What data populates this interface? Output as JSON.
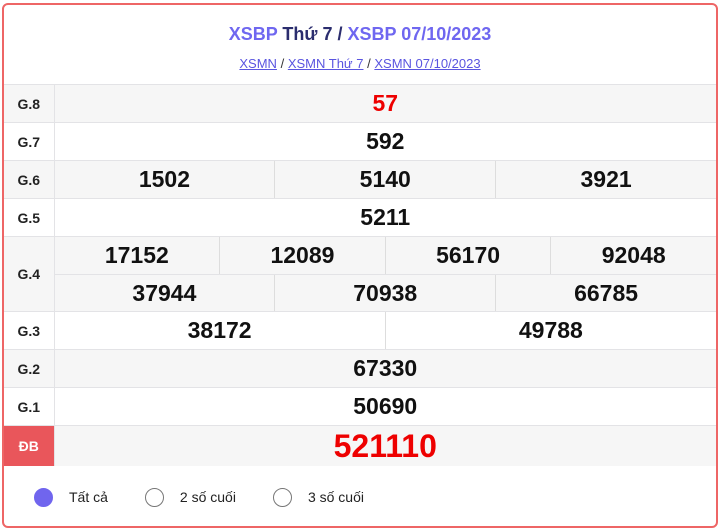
{
  "header": {
    "title_part1": "XSBP",
    "title_part2": "Thứ 7",
    "title_sep": "/",
    "title_part3": "XSBP 07/10/2023",
    "breadcrumbs": [
      {
        "label": "XSMN"
      },
      {
        "label": "XSMN Thứ 7"
      },
      {
        "label": "XSMN 07/10/2023"
      }
    ],
    "crumb_sep": "/"
  },
  "prizes": [
    {
      "label": "G.8",
      "numbers": [
        "57"
      ]
    },
    {
      "label": "G.7",
      "numbers": [
        "592"
      ]
    },
    {
      "label": "G.6",
      "numbers": [
        "1502",
        "5140",
        "3921"
      ]
    },
    {
      "label": "G.5",
      "numbers": [
        "5211"
      ]
    },
    {
      "label": "G.4",
      "numbers": [
        "17152",
        "12089",
        "56170",
        "92048",
        "37944",
        "70938",
        "66785"
      ]
    },
    {
      "label": "G.3",
      "numbers": [
        "38172",
        "49788"
      ]
    },
    {
      "label": "G.2",
      "numbers": [
        "67330"
      ]
    },
    {
      "label": "G.1",
      "numbers": [
        "50690"
      ]
    },
    {
      "label": "ĐB",
      "numbers": [
        "521110"
      ]
    }
  ],
  "filter": {
    "selected": "Tất cả",
    "options": [
      {
        "label": "Tất cả"
      },
      {
        "label": "2 số cuối"
      },
      {
        "label": "3 số cuối"
      }
    ]
  },
  "colors": {
    "accent": "#7065ee",
    "special": "#e9565b",
    "highlight_number": "#ee0000",
    "border": "#ee6666"
  }
}
